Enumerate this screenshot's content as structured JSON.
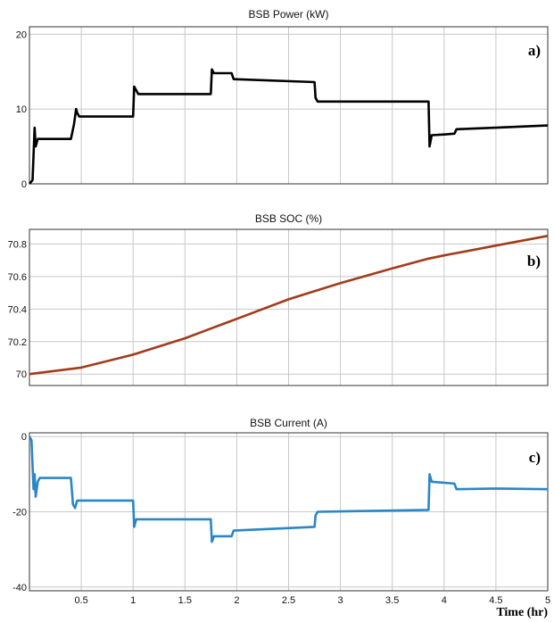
{
  "figure": {
    "xlabel": "Time (hr)",
    "x_ticks": [
      "0.5",
      "1",
      "1.5",
      "2",
      "2.5",
      "3",
      "3.5",
      "4",
      "4.5",
      "5"
    ]
  },
  "chart_data": [
    {
      "type": "line",
      "title": "BSB Power (kW)",
      "panel_label": "a)",
      "xlim": [
        0,
        5
      ],
      "ylim": [
        0,
        21
      ],
      "y_ticks": [
        "0",
        "10",
        "20"
      ],
      "y_tick_values": [
        0,
        10,
        20
      ],
      "grid": true,
      "color": "#000000",
      "x": [
        0,
        0.03,
        0.05,
        0.06,
        0.08,
        0.4,
        0.43,
        0.45,
        0.46,
        0.48,
        1.0,
        1.01,
        1.03,
        1.05,
        1.75,
        1.76,
        1.78,
        1.8,
        1.95,
        1.97,
        2.75,
        2.76,
        2.78,
        3.85,
        3.86,
        3.88,
        4.0,
        4.1,
        4.12,
        4.5,
        5.0
      ],
      "y": [
        0,
        0.5,
        7.5,
        5,
        6,
        6,
        8,
        10,
        9.5,
        9,
        9,
        13,
        12.5,
        12,
        12,
        15.3,
        14.8,
        14.8,
        14.8,
        14,
        13.6,
        11.5,
        11,
        11,
        5,
        6.5,
        6.6,
        6.7,
        7.3,
        7.5,
        7.8
      ]
    },
    {
      "type": "line",
      "title": "BSB SOC (%)",
      "panel_label": "b)",
      "xlim": [
        0,
        5
      ],
      "ylim": [
        69.93,
        70.89
      ],
      "y_ticks": [
        "70",
        "70.2",
        "70.4",
        "70.6",
        "70.8"
      ],
      "y_tick_values": [
        70,
        70.2,
        70.4,
        70.6,
        70.8
      ],
      "grid": true,
      "color": "#a23b1a",
      "x": [
        0,
        0.5,
        1.0,
        1.5,
        1.75,
        2.0,
        2.5,
        2.75,
        3.0,
        3.5,
        3.85,
        4.0,
        4.5,
        5.0
      ],
      "y": [
        70.0,
        70.04,
        70.12,
        70.22,
        70.28,
        70.34,
        70.46,
        70.51,
        70.56,
        70.65,
        70.71,
        70.73,
        70.79,
        70.85
      ]
    },
    {
      "type": "line",
      "title": "BSB Current (A)",
      "panel_label": "c)",
      "xlim": [
        0,
        5
      ],
      "ylim": [
        -41,
        1
      ],
      "y_ticks": [
        "0",
        "-20",
        "-40"
      ],
      "y_tick_values": [
        0,
        -20,
        -40
      ],
      "grid": true,
      "color": "#2a86c8",
      "x": [
        0,
        0.02,
        0.04,
        0.05,
        0.06,
        0.08,
        0.1,
        0.4,
        0.42,
        0.44,
        0.46,
        0.5,
        1.0,
        1.01,
        1.03,
        1.05,
        1.75,
        1.76,
        1.78,
        1.8,
        1.95,
        1.97,
        2.75,
        2.76,
        2.78,
        3.85,
        3.86,
        3.88,
        4.1,
        4.12,
        4.5,
        5.0
      ],
      "y": [
        0,
        -1,
        -14,
        -10,
        -16,
        -12,
        -11,
        -11,
        -18,
        -19,
        -17,
        -17,
        -17,
        -24,
        -22,
        -22,
        -22,
        -28,
        -26.5,
        -26.5,
        -26.5,
        -25,
        -24,
        -21,
        -20,
        -19.5,
        -10,
        -12,
        -12.5,
        -14,
        -13.8,
        -14
      ]
    }
  ]
}
